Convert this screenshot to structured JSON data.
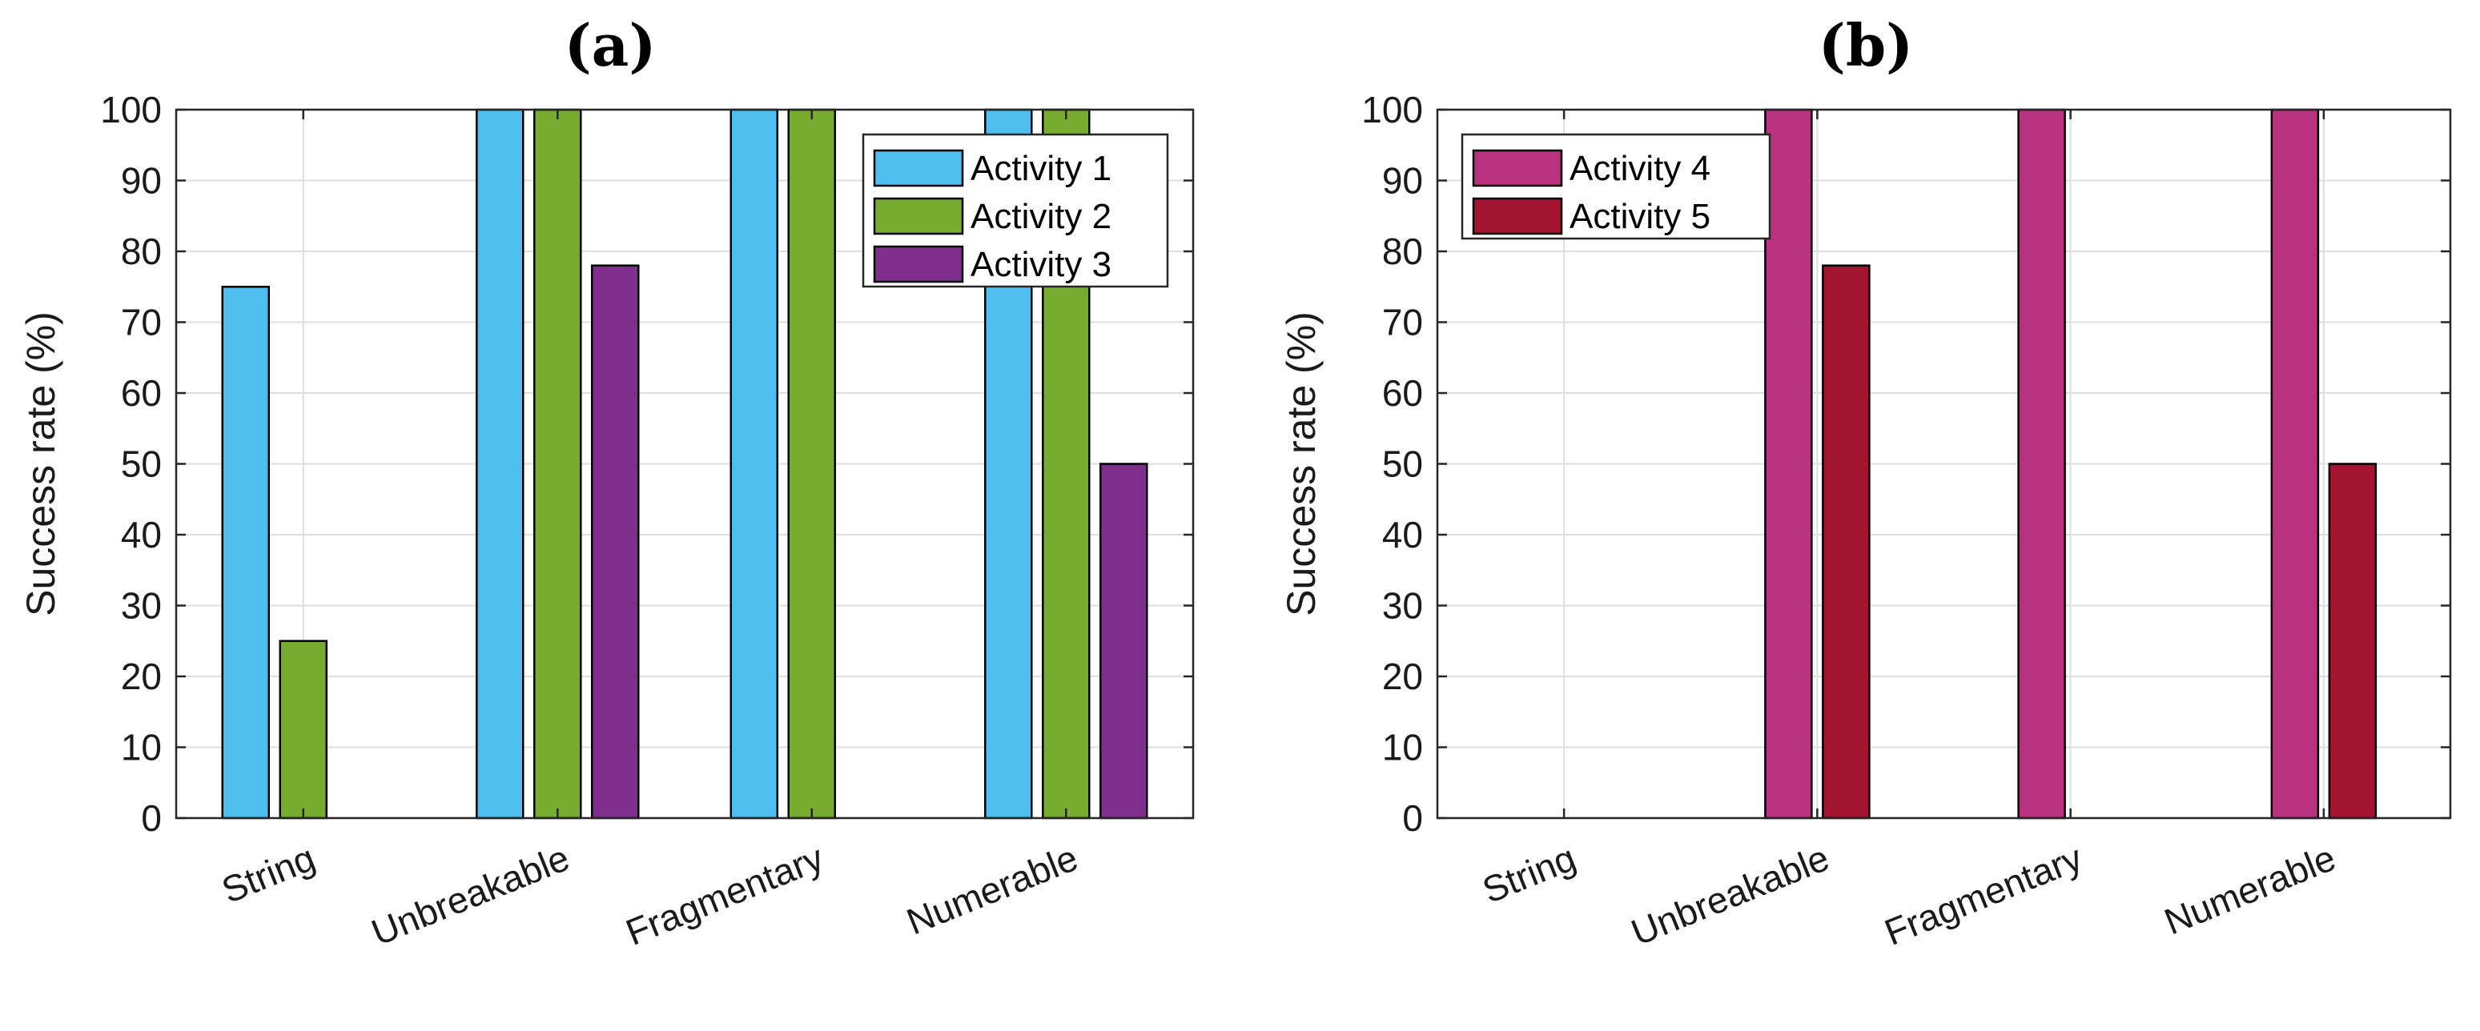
{
  "chart_data": [
    {
      "id": "a",
      "type": "bar",
      "title": "(a)",
      "xlabel": "",
      "ylabel": "Success rate (%)",
      "ylim": [
        0,
        100
      ],
      "yticks": [
        "0",
        "10",
        "20",
        "30",
        "40",
        "50",
        "60",
        "70",
        "80",
        "90",
        "100"
      ],
      "grid": true,
      "legend_position": "top-right",
      "categories": [
        "String",
        "Unbreakable",
        "Fragmentary",
        "Numerable"
      ],
      "series": [
        {
          "name": "Activity 1",
          "color": "#4DBEEE",
          "values": [
            75,
            100,
            100,
            100
          ]
        },
        {
          "name": "Activity 2",
          "color": "#77AC30",
          "values": [
            25,
            100,
            100,
            100
          ]
        },
        {
          "name": "Activity 3",
          "color": "#7E2F8E",
          "values": [
            0,
            78,
            0,
            50
          ]
        }
      ]
    },
    {
      "id": "b",
      "type": "bar",
      "title": "(b)",
      "xlabel": "",
      "ylabel": "Success rate (%)",
      "ylim": [
        0,
        100
      ],
      "yticks": [
        "0",
        "10",
        "20",
        "30",
        "40",
        "50",
        "60",
        "70",
        "80",
        "90",
        "100"
      ],
      "grid": true,
      "legend_position": "top-left",
      "categories": [
        "String",
        "Unbreakable",
        "Fragmentary",
        "Numerable"
      ],
      "series": [
        {
          "name": "Activity 4",
          "color": "#B83280",
          "values": [
            0,
            100,
            100,
            100
          ]
        },
        {
          "name": "Activity 5",
          "color": "#A2142F",
          "values": [
            0,
            78,
            0,
            50
          ]
        }
      ]
    }
  ]
}
